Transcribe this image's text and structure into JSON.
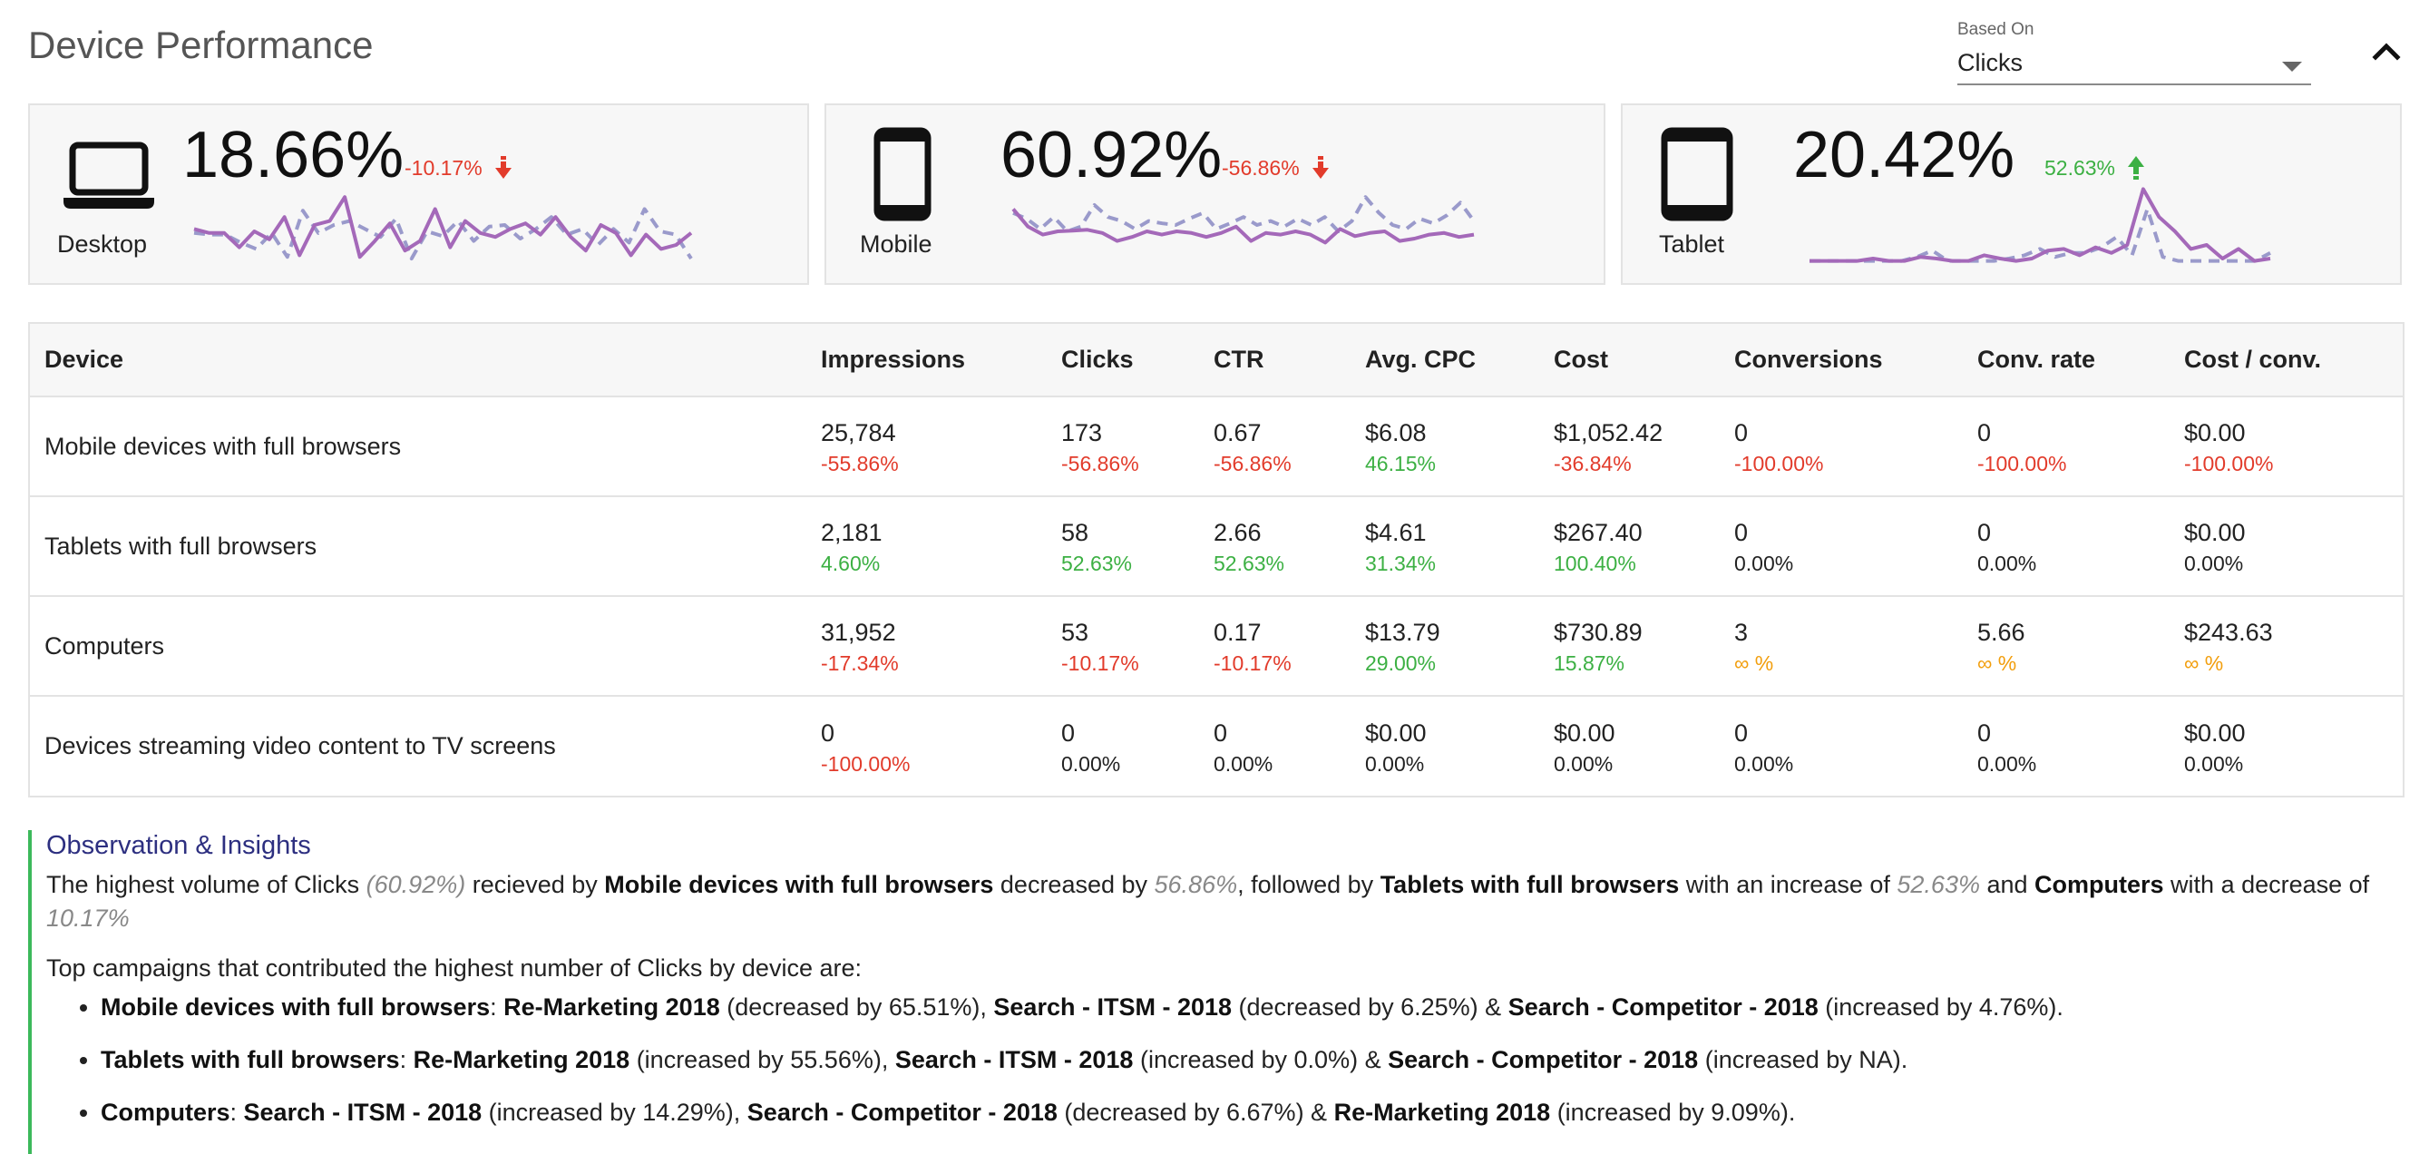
{
  "header": {
    "title": "Device Performance",
    "based_on_label": "Based On",
    "based_on_value": "Clicks",
    "collapse_icon": "chevron-up-icon"
  },
  "cards": [
    {
      "label": "Desktop",
      "icon": "laptop-icon",
      "share": "18.66%",
      "change": "-10.17%",
      "direction": "down",
      "series_current": [
        45,
        40,
        40,
        22,
        42,
        32,
        60,
        12,
        50,
        55,
        85,
        10,
        30,
        52,
        18,
        30,
        70,
        22,
        55,
        40,
        35,
        45,
        52,
        38,
        60,
        35,
        18,
        50,
        40,
        12,
        38,
        20,
        25,
        40
      ],
      "series_previous": [
        40,
        38,
        38,
        28,
        20,
        40,
        10,
        68,
        40,
        50,
        55,
        45,
        35,
        58,
        8,
        42,
        36,
        55,
        30,
        48,
        50,
        33,
        45,
        60,
        38,
        45,
        25,
        45,
        28,
        70,
        42,
        38,
        8
      ]
    },
    {
      "label": "Mobile",
      "icon": "smartphone-icon",
      "share": "60.92%",
      "change": "-56.86%",
      "direction": "down",
      "series_current": [
        70,
        48,
        38,
        42,
        43,
        44,
        40,
        30,
        35,
        42,
        38,
        42,
        40,
        35,
        40,
        48,
        30,
        40,
        38,
        42,
        38,
        28,
        45,
        36,
        40,
        42,
        30,
        33,
        38,
        40,
        35,
        38
      ],
      "series_previous": [
        65,
        58,
        45,
        60,
        42,
        48,
        75,
        60,
        55,
        45,
        55,
        52,
        50,
        58,
        65,
        45,
        52,
        60,
        50,
        55,
        48,
        58,
        50,
        60,
        42,
        55,
        85,
        65,
        50,
        45,
        58,
        52,
        62,
        78,
        55
      ]
    },
    {
      "label": "Tablet",
      "icon": "tablet-icon",
      "share": "20.42%",
      "change": "52.63%",
      "direction": "up",
      "series_current": [
        5,
        5,
        5,
        5,
        8,
        5,
        5,
        10,
        8,
        5,
        5,
        12,
        8,
        5,
        8,
        18,
        20,
        12,
        22,
        15,
        25,
        95,
        60,
        42,
        20,
        25,
        8,
        20,
        5,
        8
      ],
      "series_previous": [
        5,
        5,
        5,
        5,
        5,
        5,
        5,
        10,
        18,
        5,
        5,
        5,
        5,
        8,
        12,
        20,
        10,
        15,
        15,
        22,
        35,
        12,
        70,
        10,
        5,
        5,
        5,
        5,
        5,
        5,
        15
      ]
    }
  ],
  "table": {
    "headers": [
      "Device",
      "Impressions",
      "Clicks",
      "CTR",
      "Avg. CPC",
      "Cost",
      "Conversions",
      "Conv. rate",
      "Cost / conv."
    ],
    "rows": [
      {
        "device": "Mobile devices with full browsers",
        "cells": [
          {
            "value": "25,784",
            "change": "-55.86%",
            "tone": "neg"
          },
          {
            "value": "173",
            "change": "-56.86%",
            "tone": "neg"
          },
          {
            "value": "0.67",
            "change": "-56.86%",
            "tone": "neg"
          },
          {
            "value": "$6.08",
            "change": "46.15%",
            "tone": "pos"
          },
          {
            "value": "$1,052.42",
            "change": "-36.84%",
            "tone": "neg"
          },
          {
            "value": "0",
            "change": "-100.00%",
            "tone": "neg"
          },
          {
            "value": "0",
            "change": "-100.00%",
            "tone": "neg"
          },
          {
            "value": "$0.00",
            "change": "-100.00%",
            "tone": "neg"
          }
        ]
      },
      {
        "device": "Tablets with full browsers",
        "cells": [
          {
            "value": "2,181",
            "change": "4.60%",
            "tone": "pos"
          },
          {
            "value": "58",
            "change": "52.63%",
            "tone": "pos"
          },
          {
            "value": "2.66",
            "change": "52.63%",
            "tone": "pos"
          },
          {
            "value": "$4.61",
            "change": "31.34%",
            "tone": "pos"
          },
          {
            "value": "$267.40",
            "change": "100.40%",
            "tone": "pos"
          },
          {
            "value": "0",
            "change": "0.00%",
            "tone": "neutral"
          },
          {
            "value": "0",
            "change": "0.00%",
            "tone": "neutral"
          },
          {
            "value": "$0.00",
            "change": "0.00%",
            "tone": "neutral"
          }
        ]
      },
      {
        "device": "Computers",
        "cells": [
          {
            "value": "31,952",
            "change": "-17.34%",
            "tone": "neg"
          },
          {
            "value": "53",
            "change": "-10.17%",
            "tone": "neg"
          },
          {
            "value": "0.17",
            "change": "-10.17%",
            "tone": "neg"
          },
          {
            "value": "$13.79",
            "change": "29.00%",
            "tone": "pos"
          },
          {
            "value": "$730.89",
            "change": "15.87%",
            "tone": "pos"
          },
          {
            "value": "3",
            "change": "∞ %",
            "tone": "inf"
          },
          {
            "value": "5.66",
            "change": "∞ %",
            "tone": "inf"
          },
          {
            "value": "$243.63",
            "change": "∞ %",
            "tone": "inf"
          }
        ]
      },
      {
        "device": "Devices streaming video content to TV screens",
        "cells": [
          {
            "value": "0",
            "change": "-100.00%",
            "tone": "neg"
          },
          {
            "value": "0",
            "change": "0.00%",
            "tone": "neutral"
          },
          {
            "value": "0",
            "change": "0.00%",
            "tone": "neutral"
          },
          {
            "value": "$0.00",
            "change": "0.00%",
            "tone": "neutral"
          },
          {
            "value": "$0.00",
            "change": "0.00%",
            "tone": "neutral"
          },
          {
            "value": "0",
            "change": "0.00%",
            "tone": "neutral"
          },
          {
            "value": "0",
            "change": "0.00%",
            "tone": "neutral"
          },
          {
            "value": "$0.00",
            "change": "0.00%",
            "tone": "neutral"
          }
        ]
      }
    ]
  },
  "insights": {
    "title": "Observation & Insights",
    "summary": {
      "t1": "The highest volume of Clicks ",
      "p1": "(60.92%)",
      "t2": " recieved by ",
      "d1": "Mobile devices with full browsers",
      "t3": " decreased by ",
      "p2": "56.86%",
      "t4": ", followed by ",
      "d2": "Tablets with full browsers",
      "t5": " with an increase of ",
      "p3": "52.63%",
      "t6": " and ",
      "d3": "Computers",
      "t7": " with a decrease of ",
      "p4": "10.17%"
    },
    "top_intro": "Top campaigns that contributed the highest number of Clicks by device are:",
    "items": [
      {
        "device": "Mobile devices with full browsers",
        "c1": "Re-Marketing 2018",
        "n1": " (decreased by 65.51%), ",
        "c2": "Search - ITSM - 2018",
        "n2": " (decreased by 6.25%) & ",
        "c3": "Search - Competitor - 2018",
        "n3": " (increased by 4.76%)."
      },
      {
        "device": "Tablets with full browsers",
        "c1": "Re-Marketing 2018",
        "n1": " (increased by 55.56%), ",
        "c2": "Search - ITSM - 2018",
        "n2": " (increased by 0.0%) & ",
        "c3": "Search - Competitor - 2018",
        "n3": " (increased by NA)."
      },
      {
        "device": "Computers",
        "c1": "Search - ITSM - 2018",
        "n1": " (increased by 14.29%), ",
        "c2": "Search - Competitor - 2018",
        "n2": " (decreased by 6.67%) & ",
        "c3": "Re-Marketing 2018",
        "n3": " (increased by 9.09%)."
      }
    ]
  },
  "colors": {
    "negative": "#e23b2b",
    "positive": "#3cb043",
    "infinite": "#f29e0c",
    "spark_current": "#a469b9",
    "spark_previous": "#9a9acb",
    "insight_title": "#2d2f80",
    "insight_border": "#3cb95b"
  }
}
